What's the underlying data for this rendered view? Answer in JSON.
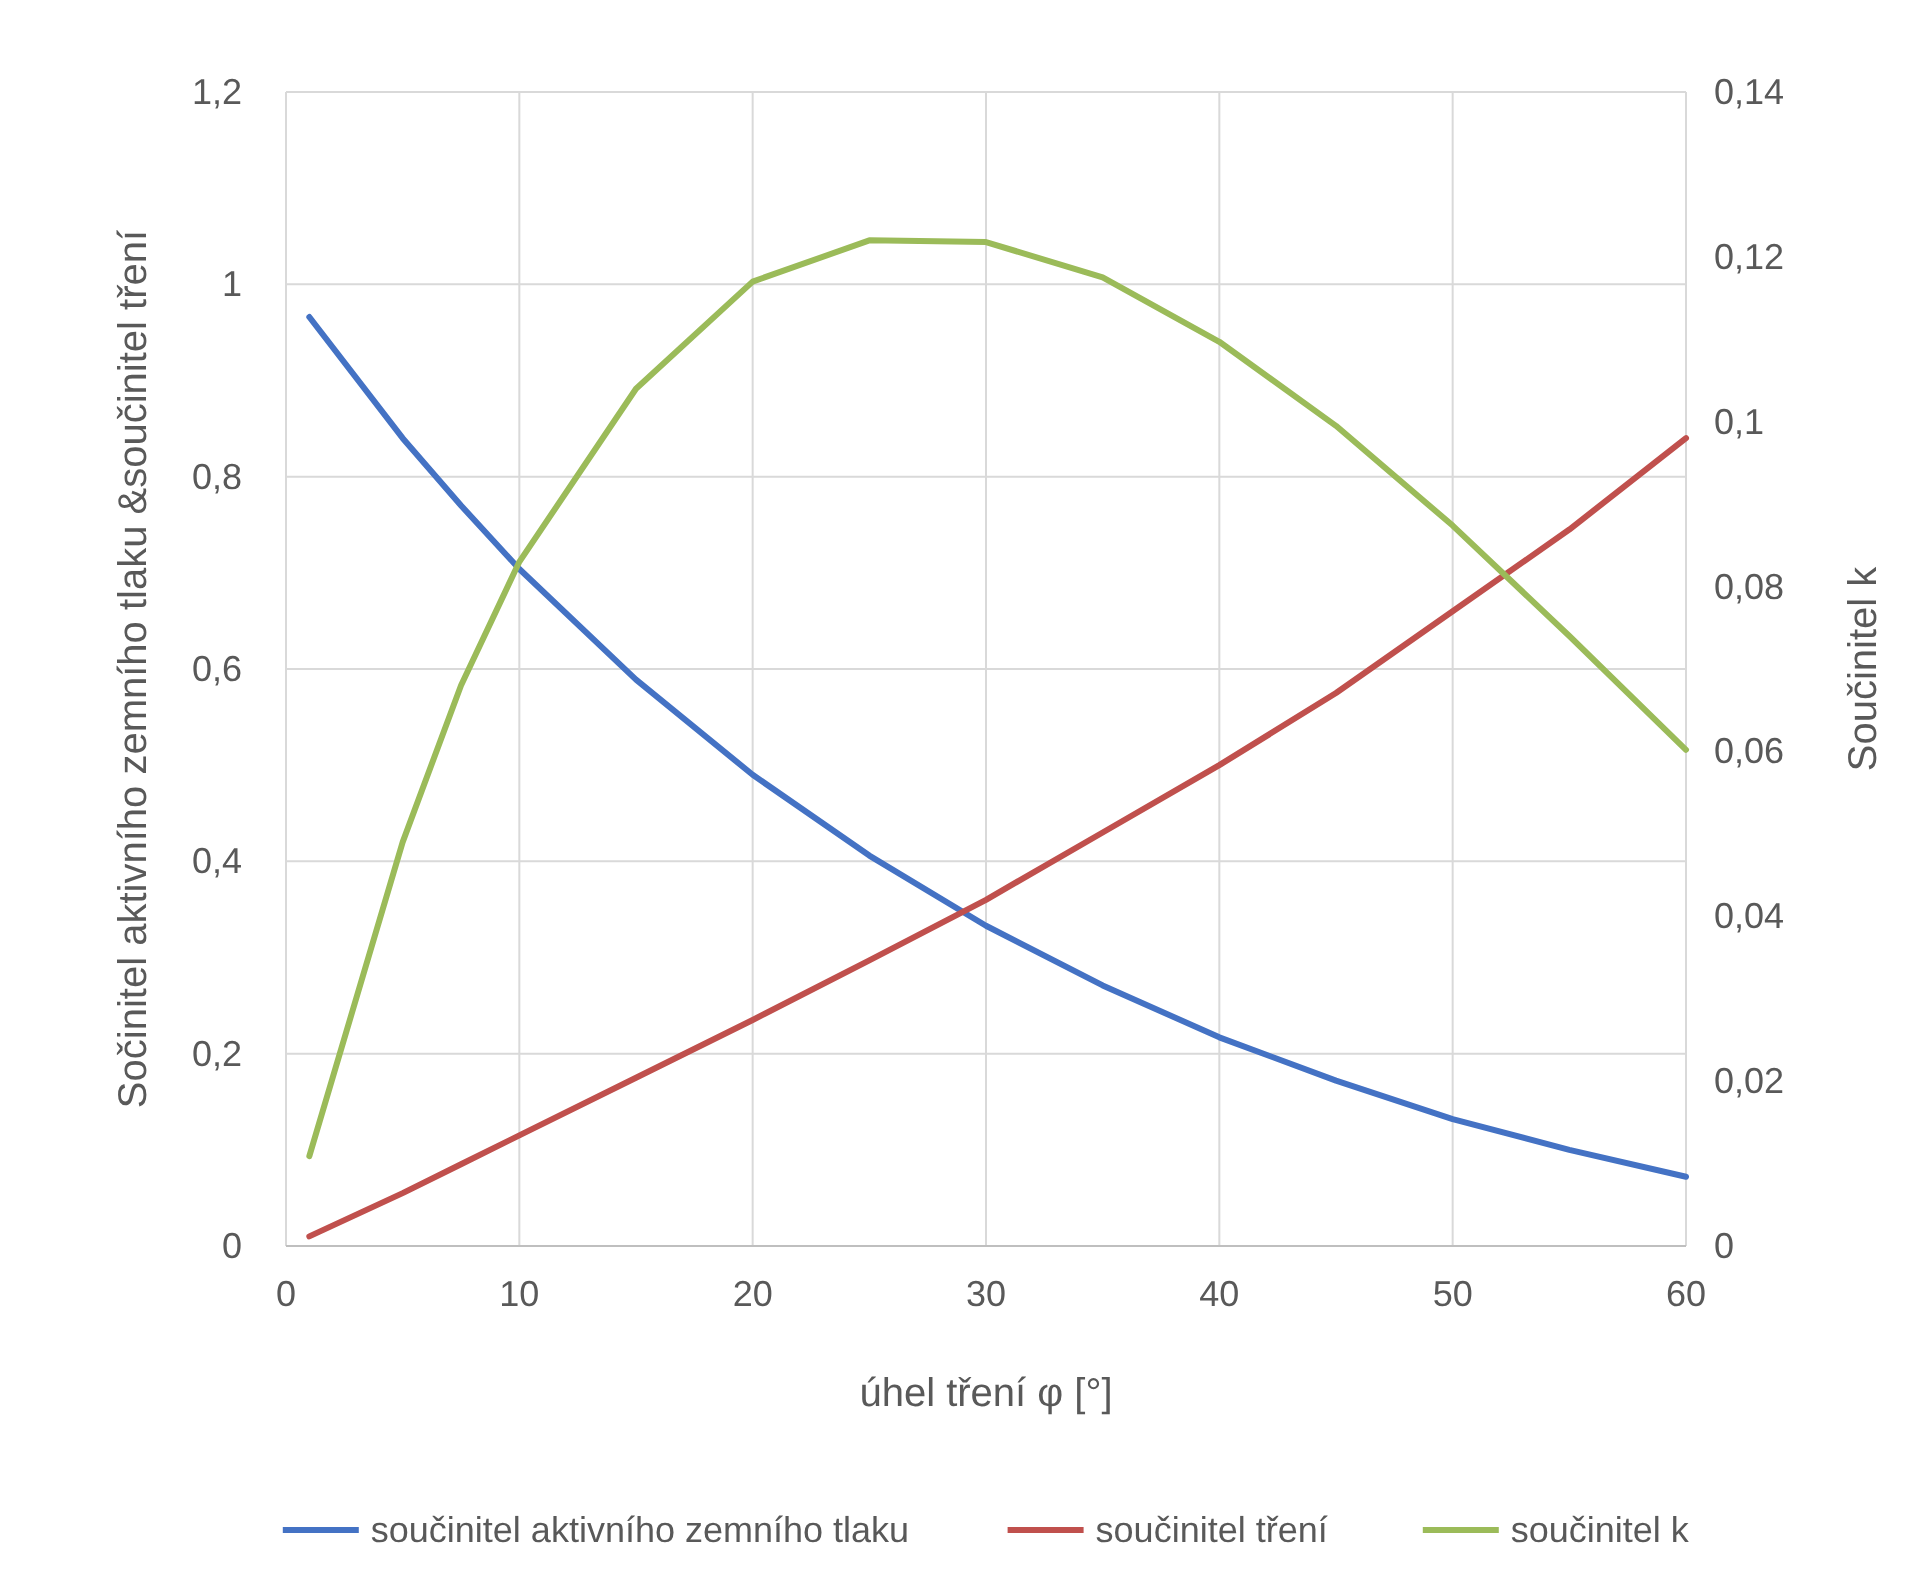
{
  "chart_data": {
    "type": "line",
    "xlabel": "úhel tření φ [°]",
    "ylabel": "Sočinitel aktivního zemního tlaku &součinitel tření",
    "y2label": "Součinitel k",
    "x": [
      1,
      5,
      7.5,
      10,
      15,
      20,
      25,
      30,
      35,
      40,
      45,
      50,
      55,
      60
    ],
    "xlim": [
      0,
      60
    ],
    "xticks": [
      0,
      10,
      20,
      30,
      40,
      50,
      60
    ],
    "ylim": [
      0,
      1.2
    ],
    "yticks": [
      0,
      {
        "value": 0.2,
        "label": "0,2"
      },
      {
        "value": 0.4,
        "label": "0,4"
      },
      {
        "value": 0.6,
        "label": "0,6"
      },
      {
        "value": 0.8,
        "label": "0,8"
      },
      1,
      {
        "value": 1.2,
        "label": "1,2"
      }
    ],
    "y2lim": [
      0,
      0.14
    ],
    "y2ticks": [
      0,
      {
        "value": 0.02,
        "label": "0,02"
      },
      {
        "value": 0.04,
        "label": "0,04"
      },
      {
        "value": 0.06,
        "label": "0,06"
      },
      {
        "value": 0.08,
        "label": "0,08"
      },
      {
        "value": 0.1,
        "label": "0,1"
      },
      {
        "value": 0.12,
        "label": "0,12"
      },
      {
        "value": 0.14,
        "label": "0,14"
      }
    ],
    "grid": true,
    "legend": "bottom",
    "marker": "none",
    "line_style": "solid",
    "series": [
      {
        "name": "součinitel aktivního zemního tlaku",
        "color": "#4472c4",
        "values": [
          0.966,
          0.84,
          0.77,
          0.704,
          0.589,
          0.49,
          0.406,
          0.333,
          0.271,
          0.217,
          0.172,
          0.132,
          0.1,
          0.072
        ]
      },
      {
        "name": "součinitel tření",
        "color": "#c0504d",
        "values": [
          0.01,
          0.055,
          0.085,
          0.115,
          0.175,
          0.235,
          0.297,
          0.36,
          0.43,
          0.5,
          0.575,
          0.66,
          0.745,
          0.84
        ]
      },
      {
        "name": "součinitel k",
        "color": "#9bbb59",
        "axis": "y2",
        "values": [
          0.0109,
          0.049,
          0.068,
          0.083,
          0.104,
          0.117,
          0.122,
          0.1218,
          0.1175,
          0.1097,
          0.0995,
          0.0874,
          0.074,
          0.0602
        ]
      }
    ]
  }
}
